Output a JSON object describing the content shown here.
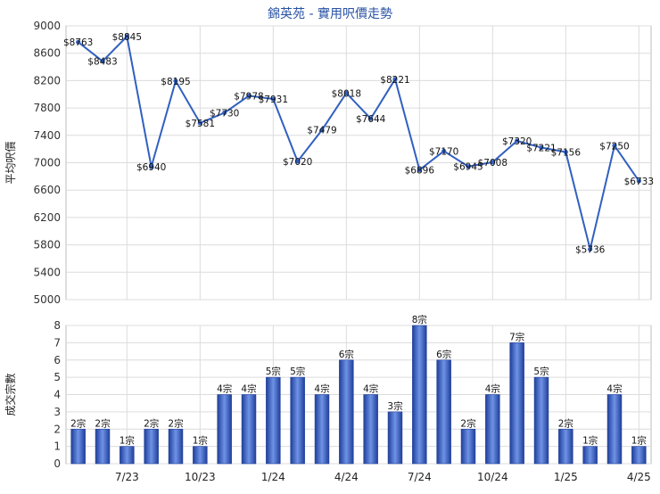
{
  "chart_data": [
    {
      "type": "line",
      "title": "錦英苑 - 實用呎價走勢",
      "ylabel": "平均呎價",
      "ylim": [
        5000,
        9000
      ],
      "yticks": [
        5000,
        5400,
        5800,
        6200,
        6600,
        7000,
        7400,
        7800,
        8200,
        8600,
        9000
      ],
      "grid": true,
      "color": "#3160c0",
      "series": [
        {
          "values": [
            8763,
            8483,
            8845,
            6940,
            8195,
            7581,
            7730,
            7978,
            7931,
            7020,
            7479,
            8018,
            7644,
            8221,
            6896,
            7170,
            6945,
            7008,
            7320,
            7221,
            7156,
            5736,
            7250,
            6733
          ],
          "labels": [
            "$8763",
            "$8483",
            "$8845",
            "$6940",
            "$8195",
            "$7581",
            "$7730",
            "$7978",
            "$7931",
            "$7020",
            "$7479",
            "$8018",
            "$7644",
            "$8221",
            "$6896",
            "$7170",
            "$6945",
            "$7008",
            "$7320",
            "$7221",
            "$7156",
            "$5736",
            "$7250",
            "$6733"
          ]
        }
      ]
    },
    {
      "type": "bar",
      "ylabel": "成交宗數",
      "ylim": [
        0,
        8
      ],
      "yticks": [
        0,
        1,
        2,
        3,
        4,
        5,
        6,
        7,
        8
      ],
      "xticks": [
        "7/23",
        "10/23",
        "1/24",
        "4/24",
        "7/24",
        "10/24",
        "1/25",
        "4/25"
      ],
      "grid": true,
      "color": "#4a72d0",
      "values": [
        2,
        2,
        1,
        2,
        2,
        1,
        4,
        4,
        5,
        5,
        4,
        6,
        4,
        3,
        8,
        6,
        2,
        4,
        7,
        5,
        2,
        1,
        4,
        1
      ],
      "labels": [
        "2宗",
        "2宗",
        "1宗",
        "2宗",
        "2宗",
        "1宗",
        "4宗",
        "4宗",
        "5宗",
        "5宗",
        "4宗",
        "6宗",
        "4宗",
        "3宗",
        "8宗",
        "6宗",
        "2宗",
        "4宗",
        "7宗",
        "5宗",
        "2宗",
        "1宗",
        "4宗",
        "1宗"
      ]
    }
  ]
}
